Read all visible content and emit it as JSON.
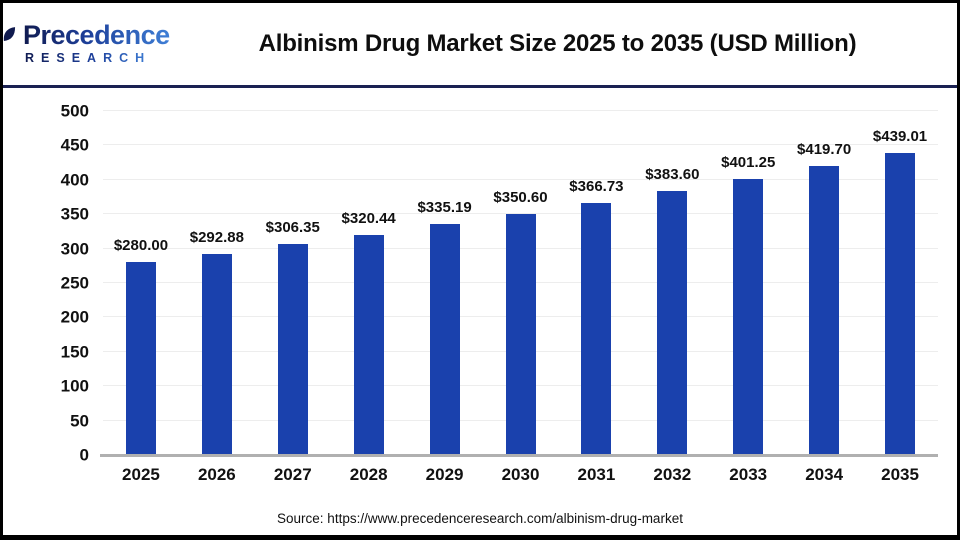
{
  "header": {
    "logo": {
      "line1": "Precedence",
      "line2": "RESEARCH"
    },
    "title": "Albinism Drug Market Size 2025 to 2035 (USD Million)"
  },
  "chart_data": {
    "type": "bar",
    "title": "Albinism Drug Market Size 2025 to 2035 (USD Million)",
    "categories": [
      "2025",
      "2026",
      "2027",
      "2028",
      "2029",
      "2030",
      "2031",
      "2032",
      "2033",
      "2034",
      "2035"
    ],
    "values": [
      280.0,
      292.88,
      306.35,
      320.44,
      335.19,
      350.6,
      366.73,
      383.6,
      401.25,
      419.7,
      439.01
    ],
    "value_labels": [
      "$280.00",
      "$292.88",
      "$306.35",
      "$320.44",
      "$335.19",
      "$350.60",
      "$366.73",
      "$383.60",
      "$401.25",
      "$419.70",
      "$439.01"
    ],
    "xlabel": "",
    "ylabel": "",
    "ylim": [
      0,
      500
    ],
    "y_ticks": [
      0,
      50,
      100,
      150,
      200,
      250,
      300,
      350,
      400,
      450,
      500
    ],
    "grid": true,
    "legend": "none",
    "bar_color": "#1a41ad"
  },
  "colors": {
    "accent_navy": "#1a2152",
    "bar_blue": "#1a41ad",
    "gridline": "#ededed",
    "axis_gray": "#b0b0b0"
  },
  "footer": {
    "source": "Source: https://www.precedenceresearch.com/albinism-drug-market"
  }
}
